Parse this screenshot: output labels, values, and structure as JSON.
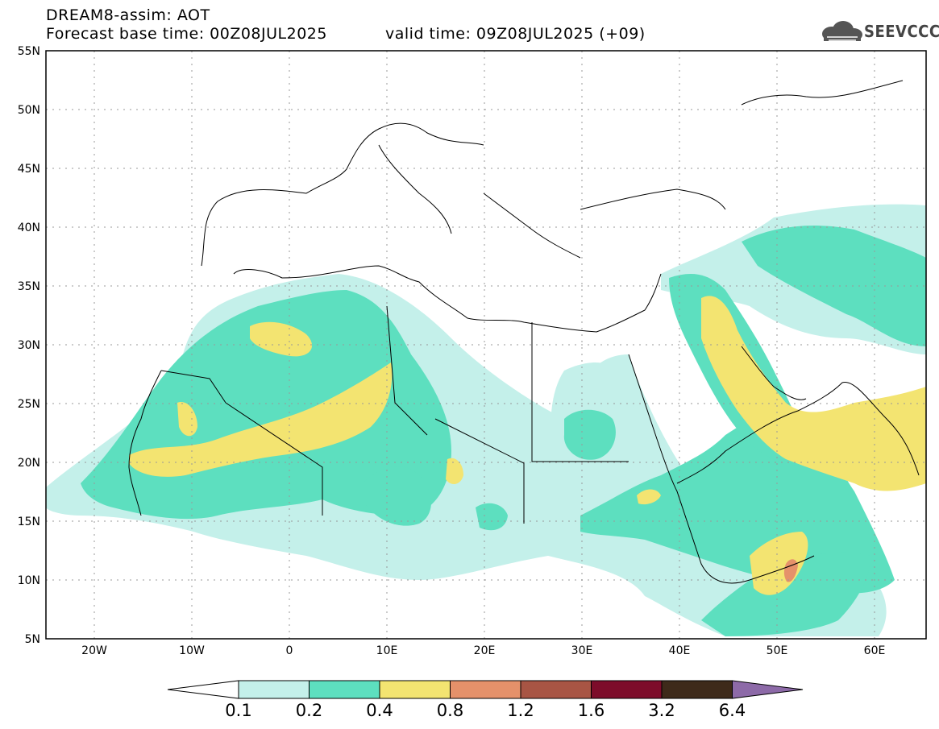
{
  "title": {
    "line1": "DREAM8-assim: AOT",
    "line2": "Forecast base time: 00Z08JUL2025",
    "valid": "valid time: 09Z08JUL2025 (+09)"
  },
  "logo": {
    "text": "SEEVCCC",
    "icon": "cloud-logo-icon"
  },
  "axes": {
    "lat_labels": [
      "55N",
      "50N",
      "45N",
      "40N",
      "35N",
      "30N",
      "25N",
      "20N",
      "15N",
      "10N",
      "5N"
    ],
    "lon_labels": [
      "20W",
      "10W",
      "0",
      "10E",
      "20E",
      "30E",
      "40E",
      "50E",
      "60E"
    ]
  },
  "map_extent": {
    "lon": [
      -25,
      65
    ],
    "lat": [
      5,
      55
    ]
  },
  "colorbar": {
    "ticks": [
      "0.1",
      "0.2",
      "0.4",
      "0.8",
      "1.2",
      "1.6",
      "3.2",
      "6.4"
    ],
    "colors": [
      "#ffffff",
      "#c4f0ea",
      "#5ddfbf",
      "#f3e471",
      "#e5916a",
      "#a85544",
      "#7d0c2a",
      "#3e2a1a",
      "#8d6aa8"
    ]
  },
  "colors": {
    "coast": "#000000",
    "grid": "#999999"
  }
}
